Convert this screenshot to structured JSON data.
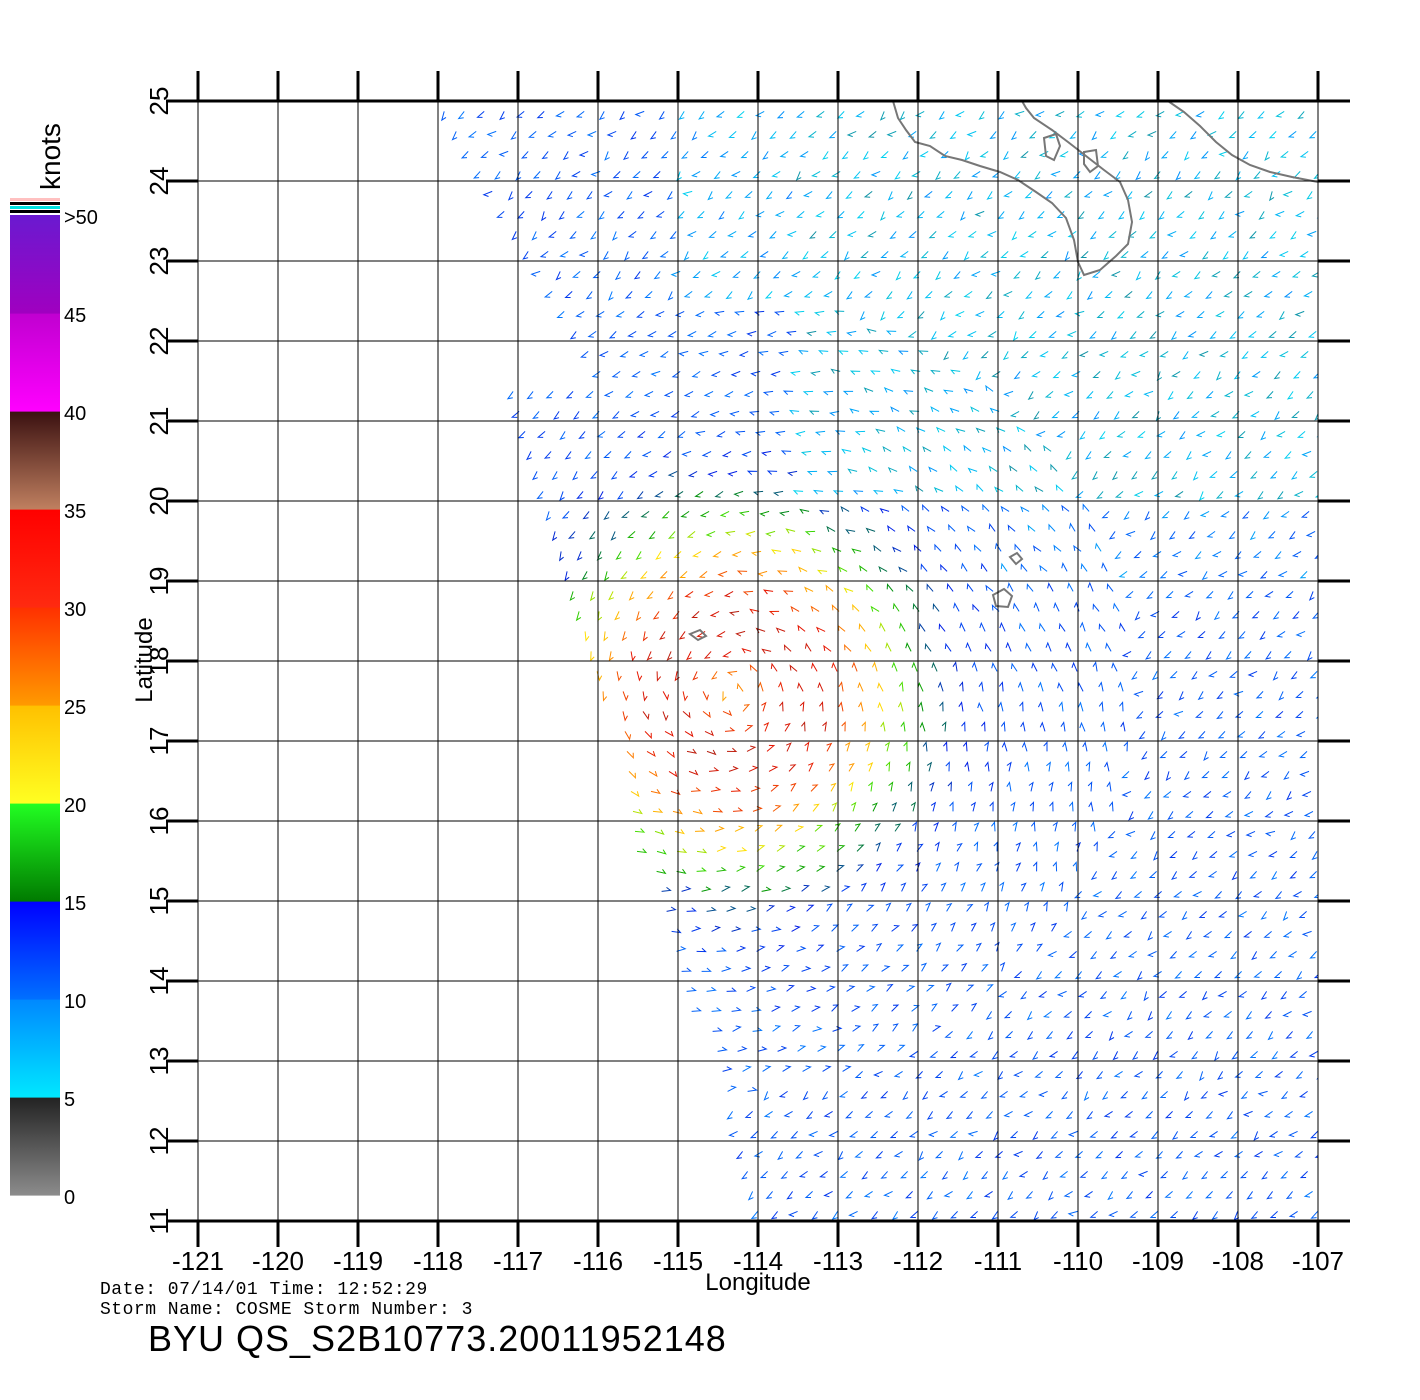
{
  "map": {
    "x_axis_label": "Longitude",
    "y_axis_label": "Latitude",
    "lon_ticks": [
      "-121",
      "-120",
      "-119",
      "-118",
      "-117",
      "-116",
      "-115",
      "-114",
      "-113",
      "-112",
      "-111",
      "-110",
      "-109",
      "-108",
      "-107"
    ],
    "lat_ticks": [
      "11",
      "12",
      "13",
      "14",
      "15",
      "16",
      "17",
      "18",
      "19",
      "20",
      "21",
      "22",
      "23",
      "24",
      "25"
    ],
    "lon_range": [
      -121,
      -107
    ],
    "lat_range": [
      11,
      25
    ],
    "storm_center": {
      "lon": -114.3,
      "lat": 17.6
    }
  },
  "colorbar": {
    "unit_label": "knots",
    "labels": [
      "0",
      "5",
      "10",
      "15",
      "20",
      "25",
      "30",
      "35",
      "40",
      "45",
      ">50"
    ],
    "bands": [
      {
        "min": 0,
        "max": 5,
        "from": "#8c8c8c",
        "to": "#222222"
      },
      {
        "min": 5,
        "max": 10,
        "from": "#00e8ff",
        "to": "#0088ff"
      },
      {
        "min": 10,
        "max": 15,
        "from": "#0070ff",
        "to": "#0000ff"
      },
      {
        "min": 15,
        "max": 20,
        "from": "#007a00",
        "to": "#22ff22"
      },
      {
        "min": 20,
        "max": 25,
        "from": "#ffff22",
        "to": "#ffc000"
      },
      {
        "min": 25,
        "max": 30,
        "from": "#ff9a00",
        "to": "#ff3000"
      },
      {
        "min": 30,
        "max": 35,
        "from": "#ff2a10",
        "to": "#ff0000"
      },
      {
        "min": 35,
        "max": 40,
        "from": "#c08060",
        "to": "#3a1010"
      },
      {
        "min": 40,
        "max": 45,
        "from": "#ff00ff",
        "to": "#c000d0"
      },
      {
        "min": 45,
        "max": 50,
        "from": "#a000c0",
        "to": "#6a1ad0"
      }
    ],
    "extra_stripes": [
      "#ffc0c0",
      "#000000",
      "#00e0e0",
      "#000000"
    ]
  },
  "info": {
    "line1": "Date: 07/14/01   Time: 12:52:29",
    "line2": "Storm Name: COSME   Storm Number: 3",
    "title": "BYU  QS_S2B10773.20011952148"
  }
}
